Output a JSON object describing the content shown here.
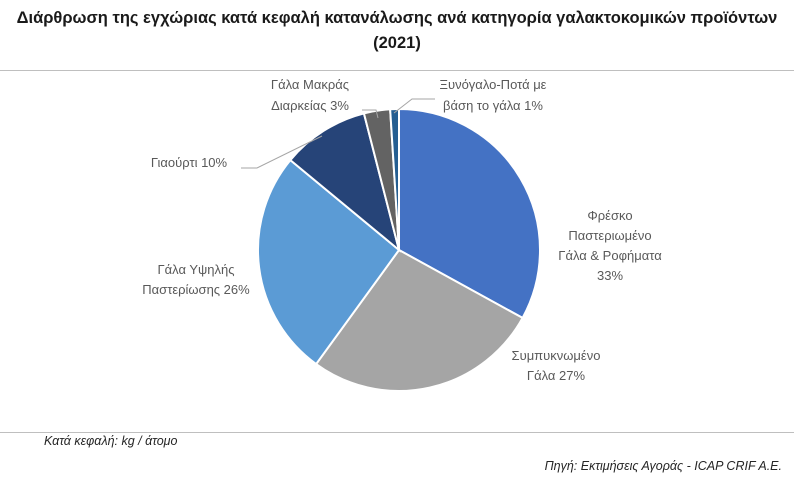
{
  "title": "Διάρθρωση της εγχώριας κατά κεφαλή κατανάλωσης ανά κατηγορία γαλακτοκομικών προϊόντων (2021)",
  "note": "Κατά κεφαλή: kg / άτομο",
  "source": "Πηγή: Εκτιμήσεις Αγοράς - ICAP CRIF A.E.",
  "chart_data": {
    "type": "pie",
    "title": "Διάρθρωση της εγχώριας κατά κεφαλή κατανάλωσης ανά κατηγορία γαλακτοκομικών προϊόντων (2021)",
    "unit": "%",
    "slices": [
      {
        "label": "Φρέσκο Παστεριωμένο Γάλα & Ροφήματα 33%",
        "label_lines": [
          "Φρέσκο",
          "Παστεριωμένο",
          "Γάλα & Ροφήματα",
          "33%"
        ],
        "value": 33,
        "color": "#4472c4"
      },
      {
        "label": "Συμπυκνωμένο Γάλα 27%",
        "label_lines": [
          "Συμπυκνωμένο",
          "Γάλα 27%"
        ],
        "value": 27,
        "color": "#a5a5a5"
      },
      {
        "label": "Γάλα Υψηλής Παστερίωσης 26%",
        "label_lines": [
          "Γάλα Υψηλής",
          "Παστερίωσης 26%"
        ],
        "value": 26,
        "color": "#5b9bd5"
      },
      {
        "label": "Γιαούρτι 10%",
        "label_lines": [
          "Γιαούρτι 10%"
        ],
        "value": 10,
        "color": "#264478"
      },
      {
        "label": "Γάλα Μακράς Διαρκείας 3%",
        "label_lines": [
          "Γάλα Μακράς",
          "Διαρκείας 3%"
        ],
        "value": 3,
        "color": "#636363"
      },
      {
        "label": "Ξυνόγαλο-Ποτά με βάση το γάλα 1%",
        "label_lines": [
          "Ξυνόγαλο-Ποτά με",
          "βάση το γάλα 1%"
        ],
        "value": 1,
        "color": "#255e91"
      }
    ],
    "legend": "none"
  }
}
